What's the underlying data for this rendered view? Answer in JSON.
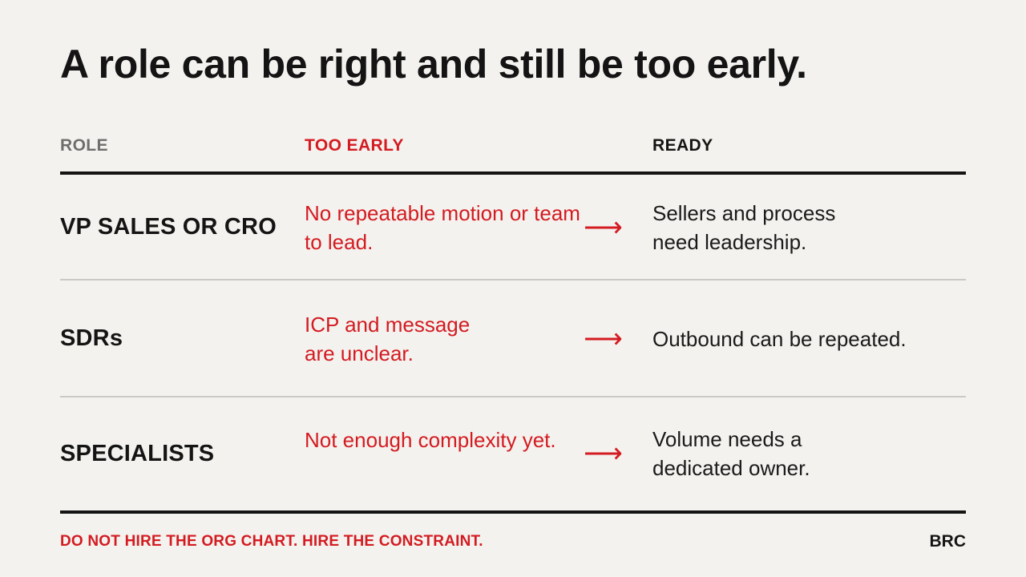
{
  "title": "A role can be right and still be too early.",
  "headers": {
    "role": "ROLE",
    "too_early": "TOO EARLY",
    "ready": "READY"
  },
  "rows": [
    {
      "role": "VP SALES OR CRO",
      "too_early": "No repeatable motion or team to lead.",
      "arrow": "⟶",
      "ready": "Sellers and process need leadership."
    },
    {
      "role": "SDRs",
      "too_early": "ICP and message are unclear.",
      "arrow": "⟶",
      "ready": "Outbound can be repeated."
    },
    {
      "role": "SPECIALISTS",
      "too_early": "Not enough complexity yet.",
      "arrow": "⟶",
      "ready": "Volume needs a dedicated owner."
    }
  ],
  "footer": {
    "tagline": "DO NOT HIRE THE ORG CHART. HIRE THE CONSTRAINT.",
    "brand": "BRC"
  },
  "colors": {
    "background": "#f4f2ee",
    "accent_red": "#d31b21",
    "text_dark": "#141414",
    "header_grey": "#6e6e6e",
    "divider": "#cbc9c5"
  }
}
